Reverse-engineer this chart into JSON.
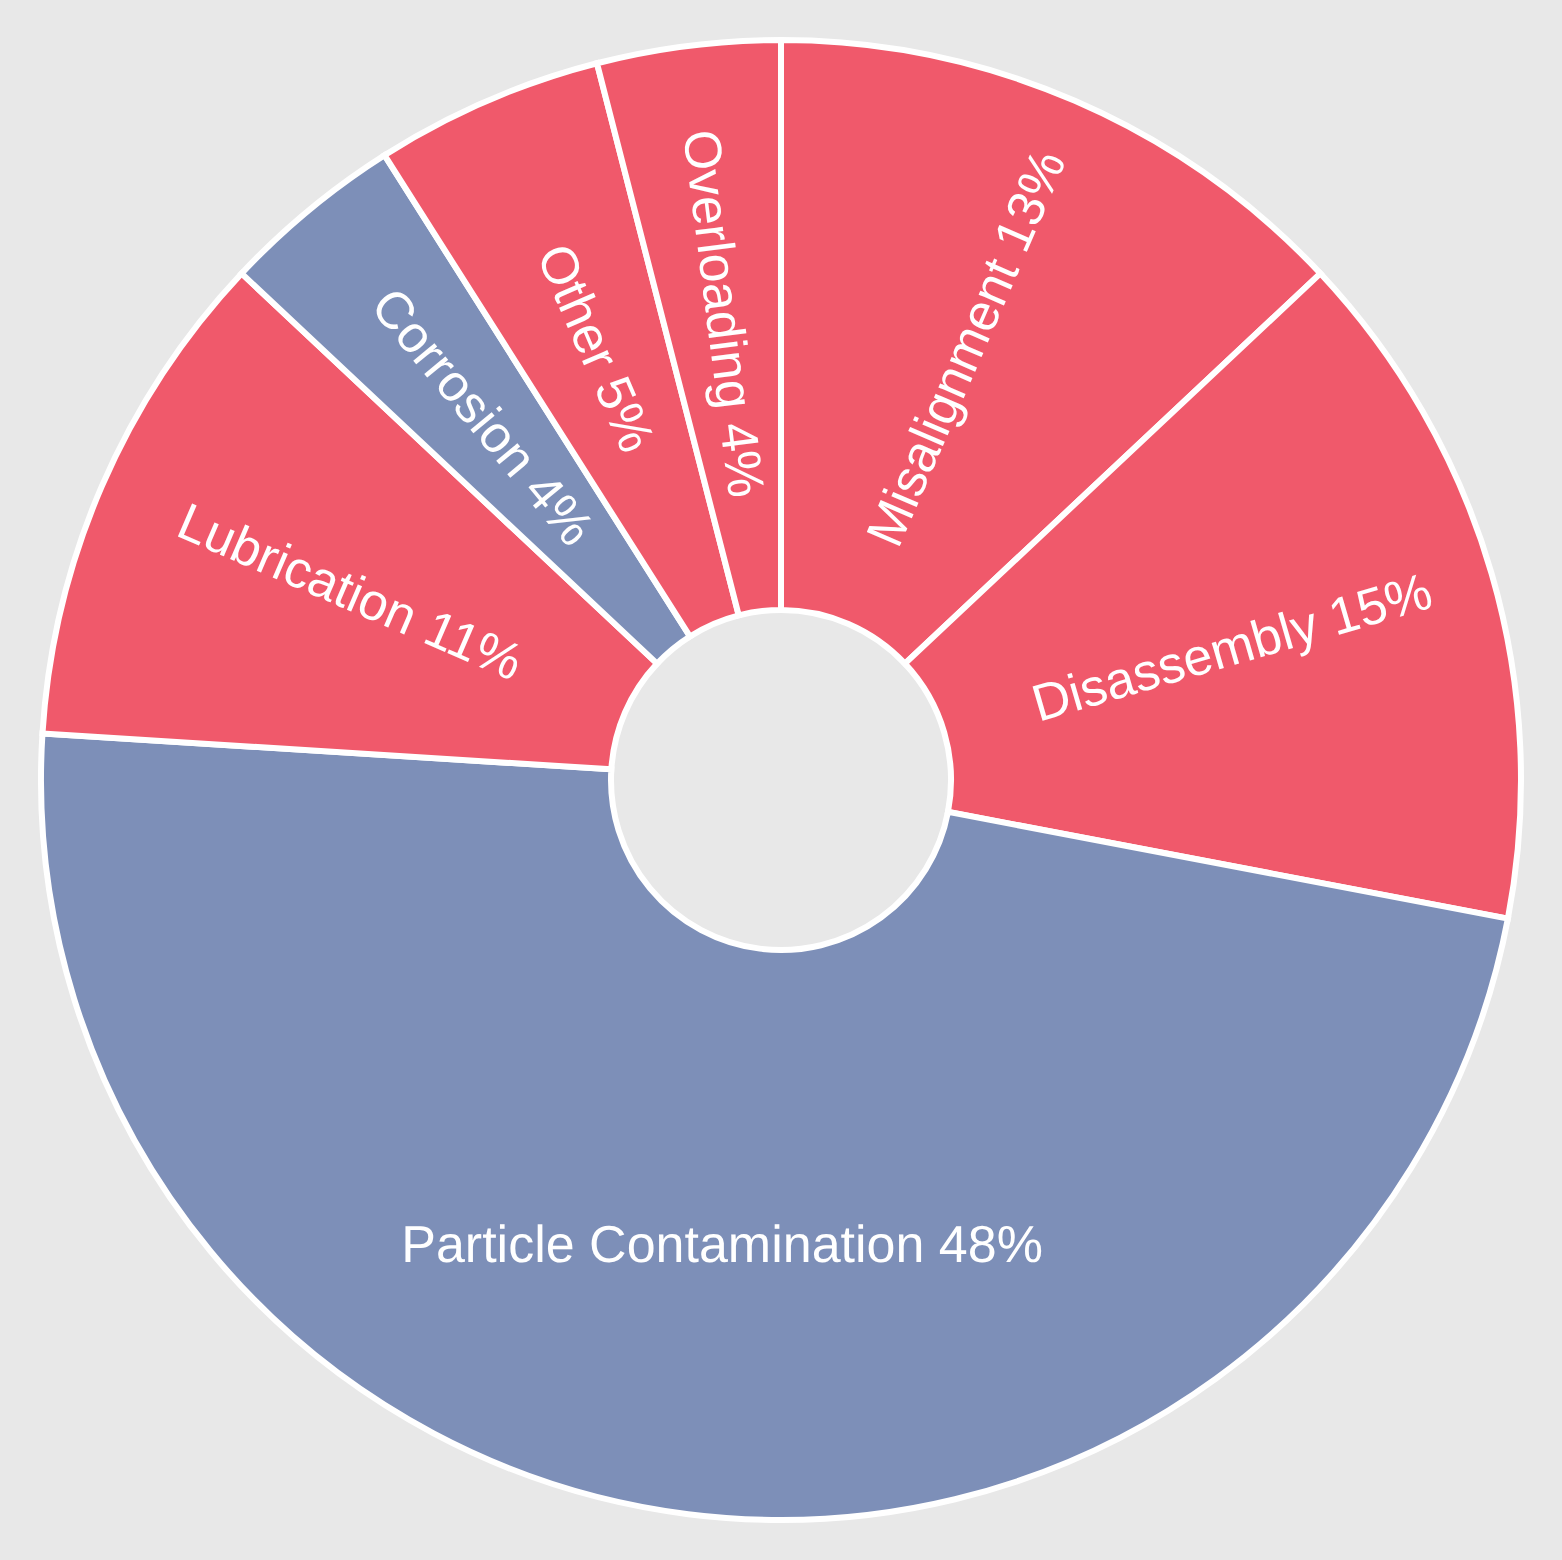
{
  "chart_data": {
    "type": "donut",
    "categories": [
      "Misalignment",
      "Disassembly",
      "Particle Contamination",
      "Lubrication",
      "Corrosion",
      "Other",
      "Overloading"
    ],
    "values": [
      13,
      15,
      48,
      11,
      4,
      5,
      4
    ],
    "value_labels": [
      "13%",
      "15%",
      "48%",
      "11%",
      "4%",
      "5%",
      "4%"
    ],
    "colors": [
      "#f0596b",
      "#f0596b",
      "#7d8fb8",
      "#f0596b",
      "#7d8fb8",
      "#f0596b",
      "#f0596b"
    ],
    "legend": false
  }
}
